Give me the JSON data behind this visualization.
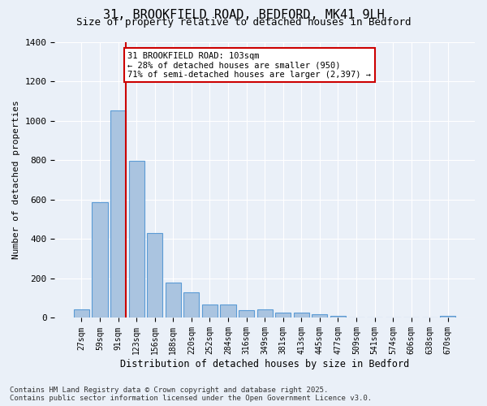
{
  "title_line1": "31, BROOKFIELD ROAD, BEDFORD, MK41 9LH",
  "title_line2": "Size of property relative to detached houses in Bedford",
  "xlabel": "Distribution of detached houses by size in Bedford",
  "ylabel": "Number of detached properties",
  "categories": [
    "27sqm",
    "59sqm",
    "91sqm",
    "123sqm",
    "156sqm",
    "188sqm",
    "220sqm",
    "252sqm",
    "284sqm",
    "316sqm",
    "349sqm",
    "381sqm",
    "413sqm",
    "445sqm",
    "477sqm",
    "509sqm",
    "541sqm",
    "574sqm",
    "606sqm",
    "638sqm",
    "670sqm"
  ],
  "values": [
    45,
    585,
    1050,
    795,
    430,
    178,
    128,
    68,
    68,
    40,
    45,
    27,
    27,
    18,
    10,
    0,
    0,
    0,
    0,
    0,
    10
  ],
  "bar_color": "#aac4e0",
  "bar_edgecolor": "#5b9bd5",
  "vline_x": 2.425,
  "vline_color": "#cc0000",
  "annotation_text": "31 BROOKFIELD ROAD: 103sqm\n← 28% of detached houses are smaller (950)\n71% of semi-detached houses are larger (2,397) →",
  "annotation_box_color": "#ffffff",
  "annotation_box_edgecolor": "#cc0000",
  "background_color": "#eaf0f8",
  "grid_color": "#ffffff",
  "ylim": [
    0,
    1400
  ],
  "yticks": [
    0,
    200,
    400,
    600,
    800,
    1000,
    1200,
    1400
  ],
  "footer_line1": "Contains HM Land Registry data © Crown copyright and database right 2025.",
  "footer_line2": "Contains public sector information licensed under the Open Government Licence v3.0."
}
